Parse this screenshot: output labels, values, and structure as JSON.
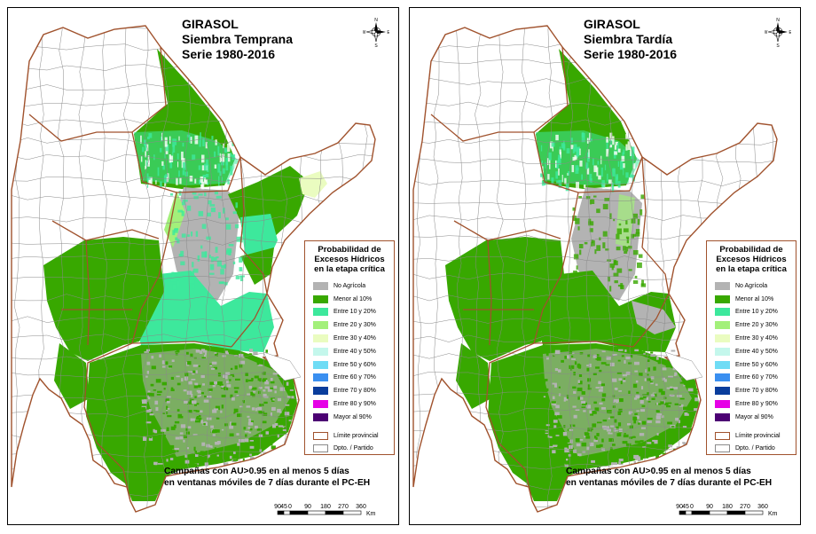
{
  "panels": [
    {
      "title": [
        "GIRASOL",
        "Siembra Temprana",
        "Serie 1980-2016"
      ],
      "variant": "early"
    },
    {
      "title": [
        "GIRASOL",
        "Siembra Tardía",
        "Serie 1980-2016"
      ],
      "variant": "late"
    }
  ],
  "compass": {
    "n": "N",
    "s": "S",
    "e": "E",
    "w": "W"
  },
  "legend": {
    "title": [
      "Probabilidad de",
      "Excesos Hídricos",
      "en la etapa crítica"
    ],
    "items": [
      {
        "label": "No Agrícola",
        "color": "#b3b3b3"
      },
      {
        "label": "Menor al 10%",
        "color": "#38a800"
      },
      {
        "label": "Entre 10 y 20%",
        "color": "#3de89c"
      },
      {
        "label": "Entre 20 y 30%",
        "color": "#a3f07a"
      },
      {
        "label": "Entre 30 y 40%",
        "color": "#eafcc0"
      },
      {
        "label": "Entre 40 y 50%",
        "color": "#c4f7ec"
      },
      {
        "label": "Entre 50 y 60%",
        "color": "#6fdcf5"
      },
      {
        "label": "Entre 60 y 70%",
        "color": "#3a8ff0"
      },
      {
        "label": "Entre 70 y 80%",
        "color": "#0a3d9c"
      },
      {
        "label": "Entre 80 y 90%",
        "color": "#e600e6"
      },
      {
        "label": "Mayor al 90%",
        "color": "#4c0073"
      }
    ],
    "boundaries": [
      {
        "label": "Límite provincial",
        "color": "#a0522d"
      },
      {
        "label": "Dpto. / Partido",
        "color": "#8a8a8a"
      }
    ]
  },
  "caption": [
    "Campañas con AU>0.95 en al menos 5 días",
    "en ventanas móviles de 7 días durante el PC-EH"
  ],
  "scale_bar": {
    "ticks": [
      "90",
      "45",
      "0",
      "90",
      "180",
      "270",
      "360"
    ],
    "unit": "Km"
  }
}
